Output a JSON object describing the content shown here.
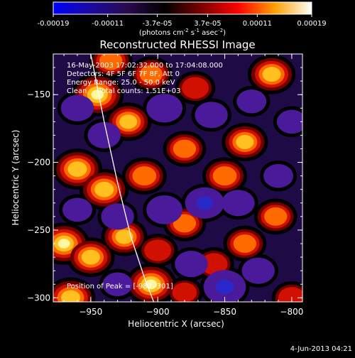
{
  "colorbar": {
    "tick_labels": [
      "-0.00019",
      "-0.00011",
      "-3.7e-05",
      "3.7e-05",
      "0.00011",
      "0.00019"
    ],
    "tick_values": [
      -0.00019,
      -0.00011,
      -3.7e-05,
      3.7e-05,
      0.00011,
      0.00019
    ],
    "range": [
      -0.00019,
      0.00019
    ],
    "units_prefix": "(photons cm",
    "units_exp1": "-2",
    "units_mid": " s",
    "units_exp2": "-1",
    "units_mid2": " asec",
    "units_exp3": "-2",
    "units_suffix": ")",
    "stops": [
      "#0000ff",
      "#1a0aa0",
      "#2a0a50",
      "#000000",
      "#7a0000",
      "#ff0000",
      "#ffa000",
      "#ffffff"
    ]
  },
  "chart_data": {
    "type": "heatmap",
    "title": "Reconstructed RHESSI Image",
    "xlabel": "Heliocentric X (arcsec)",
    "ylabel": "Heliocentric Y (arcsec)",
    "xlim": [
      -978,
      -792
    ],
    "ylim": [
      -303,
      -120
    ],
    "x_ticks": [
      -950,
      -900,
      -850,
      -800
    ],
    "y_ticks": [
      -300,
      -250,
      -200,
      -150
    ],
    "annotations": [
      "16-May-2003 17:02:32.000 to 17:04:08.000",
      "Detectors: 4F 5F 6F 7F 8F, Att 0",
      "Energy Range: 25.0 - 50.0 keV",
      "Clean     Total counts: 1.51E+03"
    ],
    "peak_label": "Position of Peak = [-982,-301]",
    "limb_curve": [
      [
        -950,
        -120
      ],
      [
        -940,
        -170
      ],
      [
        -930,
        -215
      ],
      [
        -920,
        -255
      ],
      [
        -910,
        -285
      ],
      [
        -903,
        -303
      ]
    ],
    "blobs": [
      {
        "x": -945,
        "y": -150,
        "v": 1.0
      },
      {
        "x": -935,
        "y": -125,
        "v": 0.7
      },
      {
        "x": -922,
        "y": -170,
        "v": 0.8
      },
      {
        "x": -905,
        "y": -135,
        "v": 0.7
      },
      {
        "x": -960,
        "y": -205,
        "v": 0.9
      },
      {
        "x": -940,
        "y": -220,
        "v": 0.9
      },
      {
        "x": -910,
        "y": -210,
        "v": 0.75
      },
      {
        "x": -880,
        "y": -190,
        "v": 0.7
      },
      {
        "x": -872,
        "y": -145,
        "v": 0.6
      },
      {
        "x": -850,
        "y": -210,
        "v": 0.75
      },
      {
        "x": -835,
        "y": -185,
        "v": 0.8
      },
      {
        "x": -815,
        "y": -135,
        "v": 0.85
      },
      {
        "x": -812,
        "y": -240,
        "v": 0.7
      },
      {
        "x": -970,
        "y": -260,
        "v": 0.95
      },
      {
        "x": -950,
        "y": -270,
        "v": 0.85
      },
      {
        "x": -925,
        "y": -255,
        "v": 0.8
      },
      {
        "x": -900,
        "y": -265,
        "v": 0.6
      },
      {
        "x": -880,
        "y": -245,
        "v": 0.7
      },
      {
        "x": -858,
        "y": -275,
        "v": 0.6
      },
      {
        "x": -835,
        "y": -260,
        "v": 0.7
      },
      {
        "x": -905,
        "y": -290,
        "v": 0.95
      },
      {
        "x": -880,
        "y": -296,
        "v": 0.5
      },
      {
        "x": -800,
        "y": -300,
        "v": 0.6
      },
      {
        "x": -965,
        "y": -300,
        "v": 0.9
      },
      {
        "x": -960,
        "y": -160,
        "v": -0.6
      },
      {
        "x": -940,
        "y": -180,
        "v": -0.6
      },
      {
        "x": -895,
        "y": -160,
        "v": -0.7
      },
      {
        "x": -860,
        "y": -165,
        "v": -0.6
      },
      {
        "x": -830,
        "y": -155,
        "v": -0.5
      },
      {
        "x": -895,
        "y": -235,
        "v": -0.7
      },
      {
        "x": -865,
        "y": -230,
        "v": -0.8
      },
      {
        "x": -840,
        "y": -230,
        "v": -0.6
      },
      {
        "x": -810,
        "y": -210,
        "v": -0.5
      },
      {
        "x": -930,
        "y": -240,
        "v": -0.6
      },
      {
        "x": -960,
        "y": -235,
        "v": -0.5
      },
      {
        "x": -850,
        "y": -292,
        "v": -0.9
      },
      {
        "x": -825,
        "y": -280,
        "v": -0.6
      },
      {
        "x": -875,
        "y": -275,
        "v": -0.6
      },
      {
        "x": -930,
        "y": -290,
        "v": -0.5
      },
      {
        "x": -800,
        "y": -170,
        "v": -0.5
      }
    ]
  },
  "footer": {
    "timestamp": "4-Jun-2013 04:21"
  }
}
